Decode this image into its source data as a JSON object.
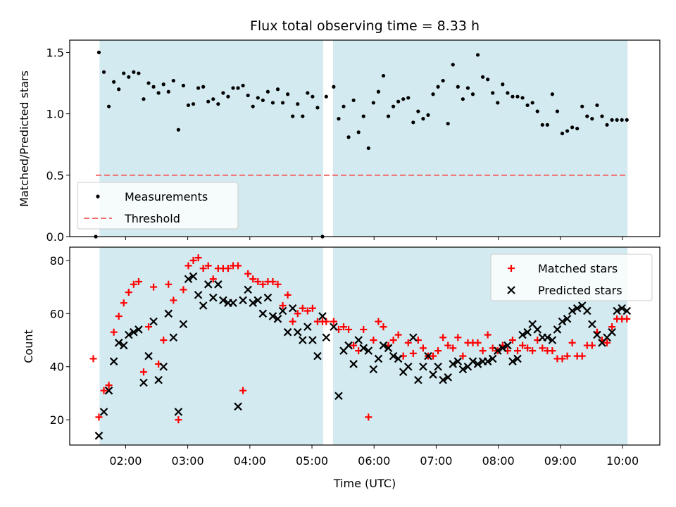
{
  "chart_data": {
    "type": "scatter",
    "title": "Flux total observing time = 8.33 h",
    "x_axis": {
      "label": "Time (UTC)",
      "units": "hours UTC",
      "range": [
        1.1,
        10.6
      ],
      "tick_values": [
        2,
        3,
        4,
        5,
        6,
        7,
        8,
        9,
        10
      ],
      "tick_labels": [
        "02:00",
        "03:00",
        "04:00",
        "05:00",
        "06:00",
        "07:00",
        "08:00",
        "09:00",
        "10:00"
      ]
    },
    "shaded_intervals": [
      {
        "start": 1.58,
        "end": 5.18,
        "color": "#d3eaf0"
      },
      {
        "start": 5.34,
        "end": 10.08,
        "color": "#d3eaf0"
      }
    ],
    "panels": [
      {
        "id": "ratio",
        "ylabel": "Matched/Predicted stars",
        "ylim": [
          0,
          1.6
        ],
        "y_ticks": [
          0.0,
          0.5,
          1.0,
          1.5
        ],
        "y_tick_labels": [
          "0.0",
          "0.5",
          "1.0",
          "1.5"
        ],
        "legend_position": "lower-left",
        "series": [
          {
            "name": "Measurements",
            "marker": "dot",
            "color": "#000000",
            "x": [
              1.52,
              1.57,
              1.65,
              1.73,
              1.81,
              1.89,
              1.97,
              2.05,
              2.13,
              2.21,
              2.29,
              2.37,
              2.45,
              2.53,
              2.61,
              2.69,
              2.77,
              2.85,
              2.93,
              3.01,
              3.09,
              3.17,
              3.25,
              3.33,
              3.41,
              3.49,
              3.57,
              3.65,
              3.73,
              3.81,
              3.89,
              3.97,
              4.05,
              4.13,
              4.21,
              4.29,
              4.37,
              4.45,
              4.53,
              4.61,
              4.69,
              4.77,
              4.85,
              4.93,
              5.01,
              5.09,
              5.17,
              5.23,
              5.35,
              5.43,
              5.51,
              5.59,
              5.67,
              5.75,
              5.83,
              5.91,
              5.99,
              6.07,
              6.15,
              6.23,
              6.31,
              6.39,
              6.47,
              6.55,
              6.63,
              6.71,
              6.79,
              6.87,
              6.95,
              7.03,
              7.11,
              7.19,
              7.27,
              7.35,
              7.43,
              7.51,
              7.59,
              7.67,
              7.75,
              7.83,
              7.91,
              7.99,
              8.07,
              8.15,
              8.23,
              8.31,
              8.39,
              8.47,
              8.55,
              8.63,
              8.71,
              8.79,
              8.87,
              8.95,
              9.03,
              9.11,
              9.19,
              9.27,
              9.35,
              9.43,
              9.51,
              9.59,
              9.67,
              9.75,
              9.83,
              9.91,
              9.99,
              10.07
            ],
            "y": [
              0.0,
              1.5,
              1.34,
              1.06,
              1.26,
              1.2,
              1.33,
              1.3,
              1.34,
              1.33,
              1.12,
              1.25,
              1.22,
              1.17,
              1.24,
              1.18,
              1.27,
              0.87,
              1.23,
              1.07,
              1.08,
              1.21,
              1.22,
              1.1,
              1.12,
              1.08,
              1.17,
              1.14,
              1.21,
              1.21,
              1.23,
              1.15,
              1.06,
              1.13,
              1.11,
              1.18,
              1.09,
              1.2,
              1.09,
              1.16,
              0.98,
              1.08,
              0.98,
              1.17,
              1.14,
              1.05,
              0.0,
              1.14,
              1.22,
              0.96,
              1.06,
              0.81,
              1.11,
              0.85,
              0.98,
              0.72,
              1.09,
              1.18,
              1.31,
              0.98,
              1.06,
              1.1,
              1.12,
              1.13,
              0.93,
              1.02,
              0.96,
              0.99,
              1.16,
              1.22,
              1.27,
              0.92,
              1.4,
              1.22,
              1.12,
              1.21,
              1.16,
              1.48,
              1.3,
              1.28,
              1.17,
              1.09,
              1.24,
              1.17,
              1.14,
              1.14,
              1.13,
              1.07,
              1.09,
              1.02,
              0.91,
              0.91,
              1.16,
              1.02,
              0.84,
              0.86,
              0.89,
              0.88,
              1.06,
              0.98,
              0.96,
              1.07,
              0.98,
              0.91,
              0.95,
              0.95,
              0.95,
              0.95
            ]
          },
          {
            "name": "Threshold",
            "style": "dashed-line",
            "color": "#f07070",
            "x": [
              1.52,
              10.08
            ],
            "y": [
              0.5,
              0.5
            ]
          }
        ]
      },
      {
        "id": "counts",
        "ylabel": "Count",
        "ylim": [
          10.5,
          85
        ],
        "y_ticks": [
          20,
          40,
          60,
          80
        ],
        "y_tick_labels": [
          "20",
          "40",
          "60",
          "80"
        ],
        "legend_position": "upper-right",
        "series": [
          {
            "name": "Matched stars",
            "marker": "plus",
            "color": "#ff0000",
            "x": [
              1.48,
              1.57,
              1.65,
              1.73,
              1.81,
              1.89,
              1.97,
              2.05,
              2.13,
              2.21,
              2.29,
              2.37,
              2.45,
              2.53,
              2.61,
              2.69,
              2.77,
              2.85,
              2.93,
              3.01,
              3.09,
              3.17,
              3.25,
              3.33,
              3.41,
              3.49,
              3.57,
              3.65,
              3.73,
              3.81,
              3.89,
              3.97,
              4.05,
              4.13,
              4.21,
              4.29,
              4.37,
              4.45,
              4.53,
              4.61,
              4.69,
              4.77,
              4.85,
              4.93,
              5.01,
              5.09,
              5.17,
              5.23,
              5.35,
              5.43,
              5.51,
              5.59,
              5.67,
              5.75,
              5.83,
              5.91,
              5.99,
              6.07,
              6.15,
              6.23,
              6.31,
              6.39,
              6.47,
              6.55,
              6.63,
              6.71,
              6.79,
              6.87,
              6.95,
              7.03,
              7.11,
              7.19,
              7.27,
              7.35,
              7.43,
              7.51,
              7.59,
              7.67,
              7.75,
              7.83,
              7.91,
              7.99,
              8.07,
              8.15,
              8.23,
              8.31,
              8.39,
              8.47,
              8.55,
              8.63,
              8.71,
              8.79,
              8.87,
              8.95,
              9.03,
              9.11,
              9.19,
              9.27,
              9.35,
              9.43,
              9.51,
              9.59,
              9.67,
              9.75,
              9.83,
              9.91,
              9.99,
              10.07
            ],
            "y": [
              43,
              21,
              31,
              33,
              53,
              59,
              64,
              68,
              71,
              72,
              38,
              55,
              70,
              41,
              50,
              71,
              65,
              20,
              69,
              78,
              80,
              81,
              77,
              78,
              73,
              77,
              77,
              77,
              78,
              78,
              31,
              75,
              73,
              72,
              71,
              72,
              72,
              71,
              63,
              67,
              57,
              60,
              62,
              61,
              62,
              57,
              57,
              57,
              57,
              54,
              55,
              54,
              48,
              46,
              54,
              21,
              50,
              57,
              55,
              48,
              50,
              52,
              44,
              49,
              45,
              50,
              47,
              44,
              44,
              46,
              51,
              48,
              47,
              51,
              44,
              49,
              49,
              49,
              46,
              52,
              47,
              46,
              48,
              46,
              50,
              46,
              48,
              47,
              46,
              50,
              47,
              46,
              46,
              43,
              43,
              44,
              49,
              44,
              44,
              48,
              48,
              53,
              50,
              49,
              55,
              58,
              58,
              58
            ]
          },
          {
            "name": "Predicted stars",
            "marker": "x",
            "color": "#000000",
            "x": [
              1.57,
              1.65,
              1.73,
              1.81,
              1.89,
              1.97,
              2.05,
              2.13,
              2.21,
              2.29,
              2.37,
              2.45,
              2.53,
              2.61,
              2.69,
              2.77,
              2.85,
              2.93,
              3.01,
              3.09,
              3.17,
              3.25,
              3.33,
              3.41,
              3.49,
              3.57,
              3.65,
              3.73,
              3.81,
              3.89,
              3.97,
              4.05,
              4.13,
              4.21,
              4.29,
              4.37,
              4.45,
              4.53,
              4.61,
              4.69,
              4.77,
              4.85,
              4.93,
              5.01,
              5.09,
              5.17,
              5.23,
              5.35,
              5.43,
              5.51,
              5.59,
              5.67,
              5.75,
              5.83,
              5.91,
              5.99,
              6.07,
              6.15,
              6.23,
              6.31,
              6.39,
              6.47,
              6.55,
              6.63,
              6.71,
              6.79,
              6.87,
              6.95,
              7.03,
              7.11,
              7.19,
              7.27,
              7.35,
              7.43,
              7.51,
              7.59,
              7.67,
              7.75,
              7.83,
              7.91,
              7.99,
              8.07,
              8.15,
              8.23,
              8.31,
              8.39,
              8.47,
              8.55,
              8.63,
              8.71,
              8.79,
              8.87,
              8.95,
              9.03,
              9.11,
              9.19,
              9.27,
              9.35,
              9.43,
              9.51,
              9.59,
              9.67,
              9.75,
              9.83,
              9.91,
              9.99,
              10.07
            ],
            "y": [
              14,
              23,
              31,
              42,
              49,
              48,
              52,
              53,
              54,
              34,
              44,
              57,
              35,
              40,
              60,
              51,
              23,
              56,
              73,
              74,
              67,
              63,
              71,
              66,
              71,
              65,
              64,
              64,
              25,
              65,
              69,
              64,
              65,
              60,
              66,
              59,
              58,
              61,
              53,
              62,
              53,
              50,
              55,
              50,
              44,
              59,
              51,
              55,
              29,
              46,
              48,
              41,
              50,
              47,
              46,
              39,
              43,
              48,
              47,
              44,
              43,
              38,
              40,
              51,
              35,
              40,
              44,
              37,
              40,
              35,
              36,
              41,
              42,
              39,
              40,
              42,
              41,
              42,
              42,
              43,
              46,
              47,
              48,
              42,
              43,
              52,
              53,
              56,
              54,
              51,
              51,
              50,
              54,
              57,
              58,
              61,
              62,
              63,
              61,
              56,
              52,
              49,
              51,
              53,
              61,
              62,
              61
            ]
          }
        ]
      }
    ]
  }
}
